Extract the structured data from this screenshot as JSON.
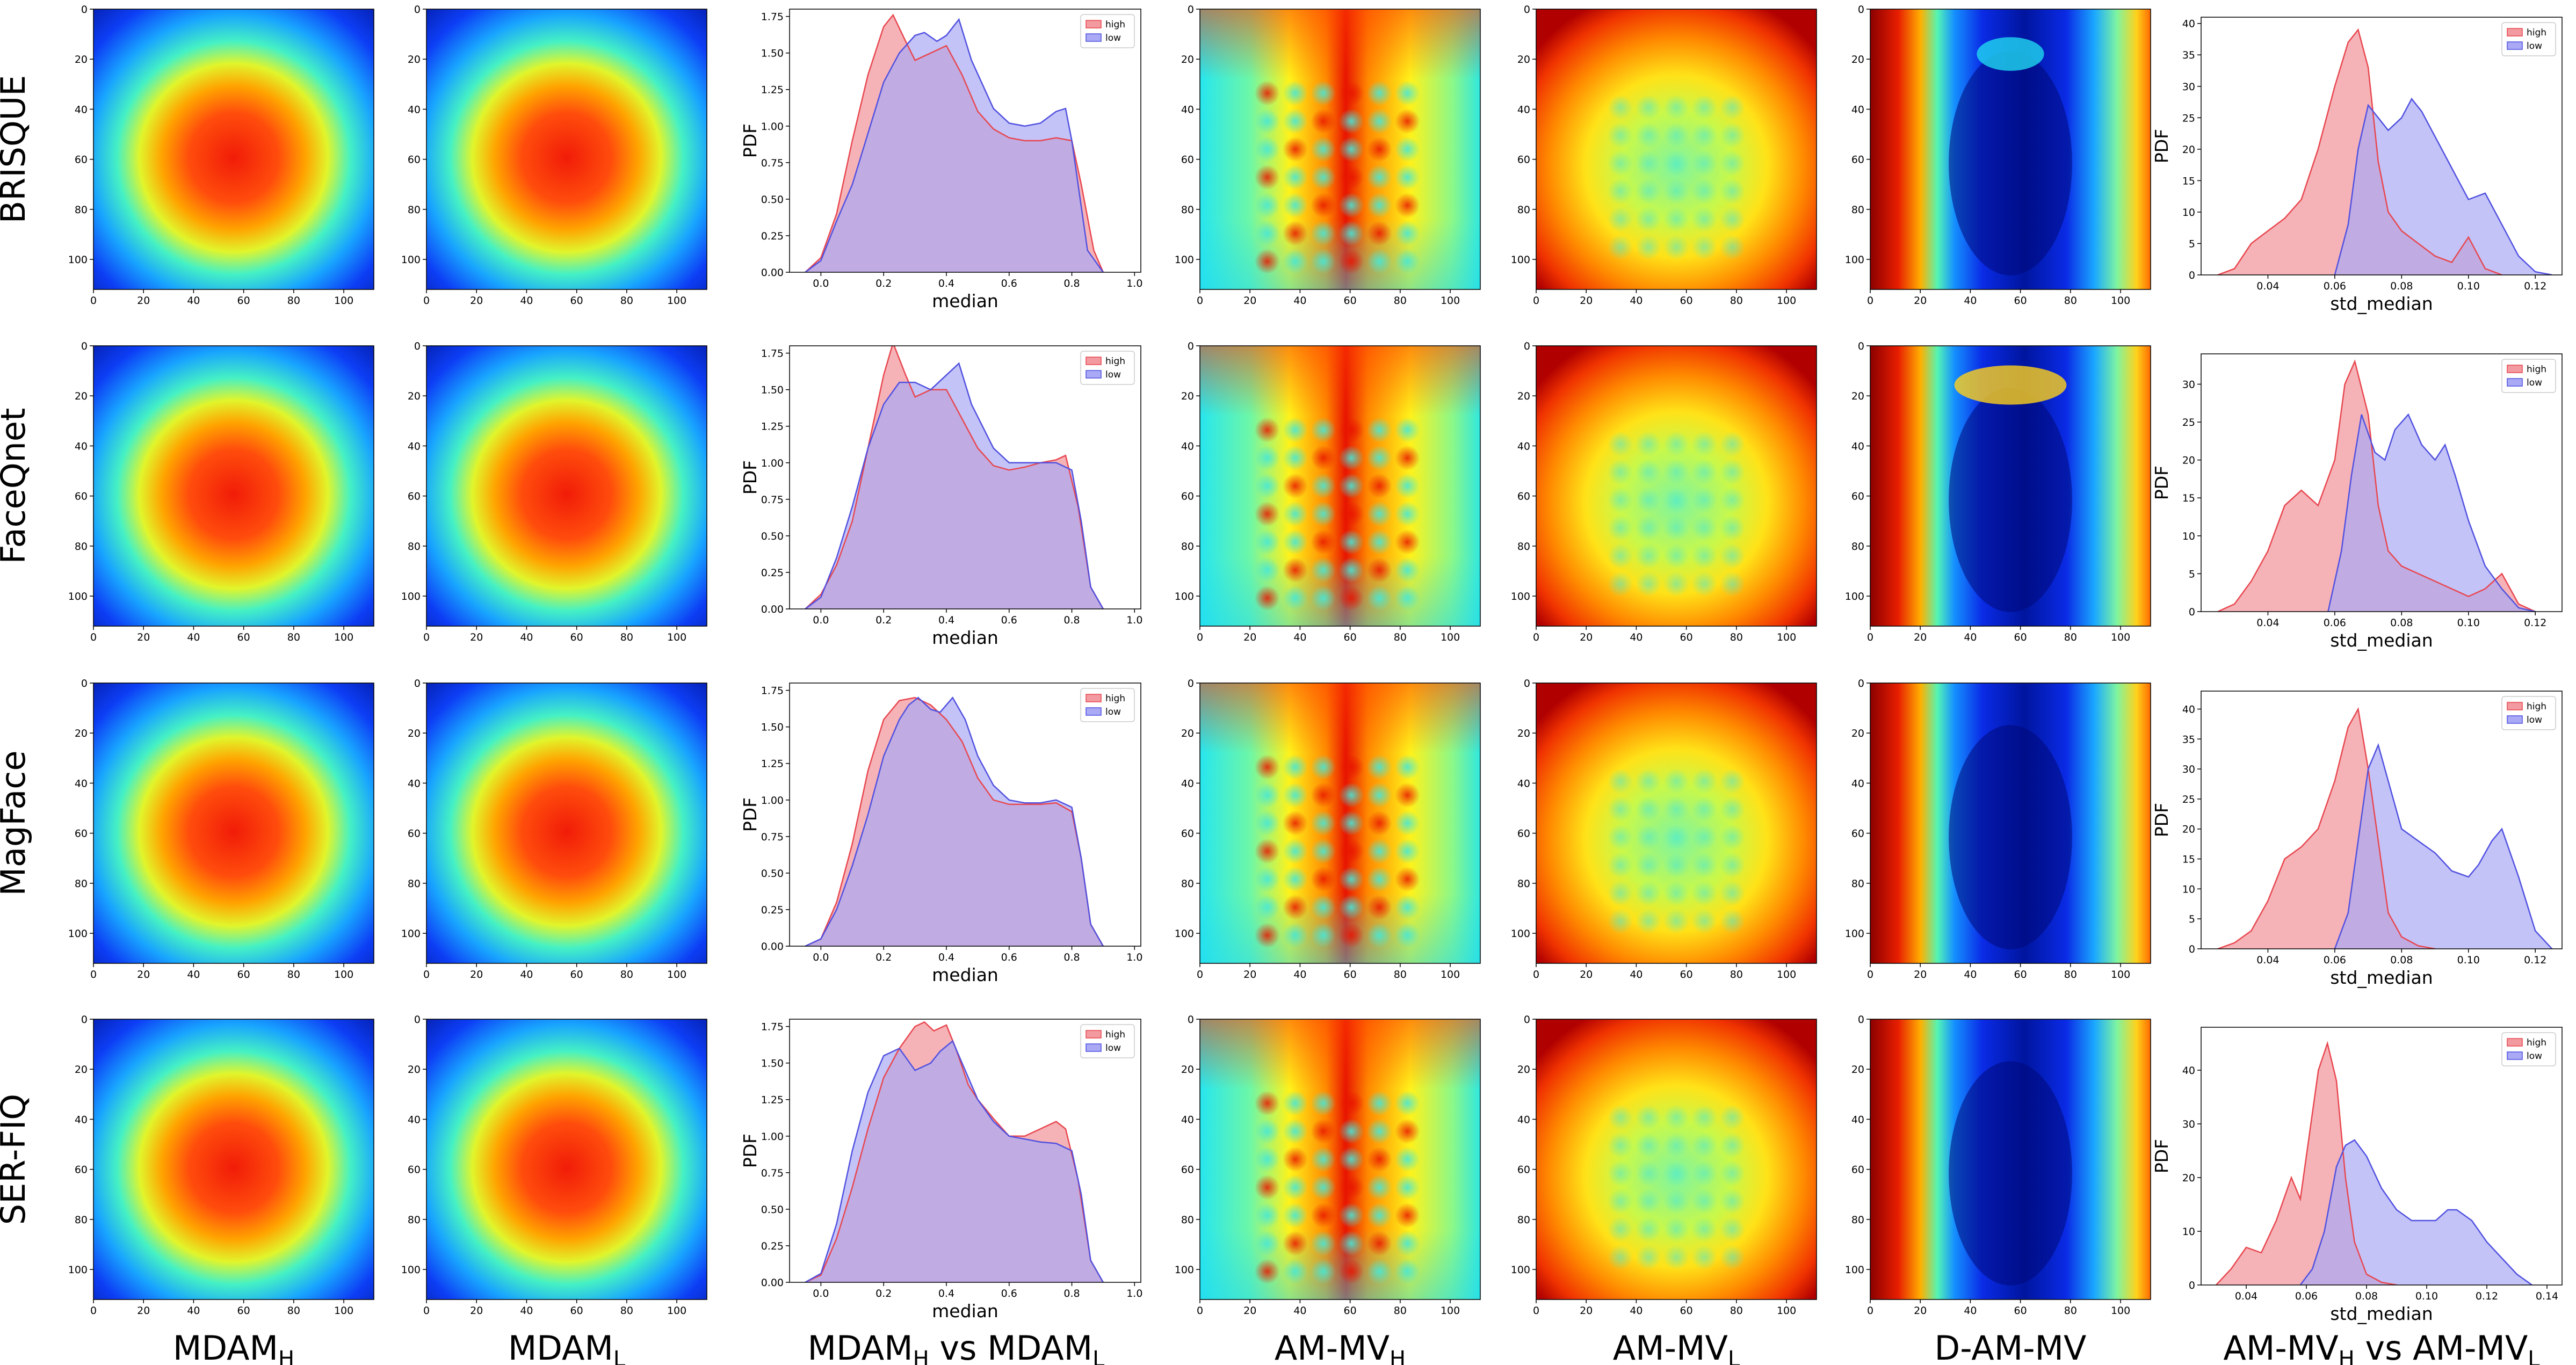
{
  "row_labels": [
    "BRISQUE",
    "FaceQnet",
    "MagFace",
    "SER-FIQ"
  ],
  "column_labels": [
    {
      "main": "MDAM",
      "sub": "H"
    },
    {
      "main": "MDAM",
      "sub": "L"
    },
    {
      "main": "MDAM",
      "sub": "H",
      "mid": " vs MDAM",
      "sub2": "L"
    },
    {
      "main": "AM-MV",
      "sub": "H"
    },
    {
      "main": "AM-MV",
      "sub": "L"
    },
    {
      "main": "D-AM-MV"
    },
    {
      "main": "AM-MV",
      "sub": "H",
      "mid": " vs AM-MV",
      "sub2": "L"
    }
  ],
  "colors": {
    "high": "#e8474f",
    "low": "#5151e0",
    "high_fill": "#f29aa0",
    "low_fill": "#a9a9f5",
    "overlap": "#b48ad2"
  },
  "chart_data": {
    "heatmap_axis": {
      "ticks": [
        0,
        20,
        40,
        60,
        80,
        100
      ],
      "range": [
        0,
        112
      ]
    },
    "heatmaps": [
      {
        "column": "MDAM_H",
        "type": "heatmap",
        "colormap": "jet",
        "pattern": "central blob (~60,65)"
      },
      {
        "column": "MDAM_L",
        "type": "heatmap",
        "colormap": "jet",
        "pattern": "central blob (~60,65)"
      },
      {
        "column": "AM-MV_H",
        "type": "heatmap",
        "colormap": "jet",
        "pattern": "grid of bright spots"
      },
      {
        "column": "AM-MV_L",
        "type": "heatmap",
        "colormap": "jet",
        "pattern": "hot border, cool center grid"
      },
      {
        "column": "D-AM-MV",
        "type": "heatmap",
        "colormap": "jet",
        "pattern": "cool central column, hot sides"
      }
    ],
    "median_kde": {
      "type": "area",
      "xlabel": "median",
      "ylabel": "PDF",
      "legend": [
        "high",
        "low"
      ],
      "legend_position": "top-right",
      "xlim": [
        -0.1,
        1.02
      ],
      "ylim": [
        0,
        1.8
      ],
      "xticks": [
        "0.0",
        "0.2",
        "0.4",
        "0.6",
        "0.8",
        "1.0"
      ],
      "yticks": [
        "0.00",
        "0.25",
        "0.50",
        "0.75",
        "1.00",
        "1.25",
        "1.50",
        "1.75"
      ],
      "rows": [
        {
          "method": "BRISQUE",
          "high": {
            "x": [
              -0.05,
              0.0,
              0.05,
              0.1,
              0.15,
              0.2,
              0.23,
              0.27,
              0.3,
              0.35,
              0.4,
              0.45,
              0.5,
              0.55,
              0.6,
              0.65,
              0.7,
              0.75,
              0.8,
              0.83,
              0.87,
              0.9
            ],
            "y": [
              0,
              0.1,
              0.4,
              0.9,
              1.35,
              1.68,
              1.76,
              1.58,
              1.45,
              1.5,
              1.55,
              1.35,
              1.1,
              0.98,
              0.92,
              0.9,
              0.9,
              0.92,
              0.9,
              0.6,
              0.15,
              0
            ]
          },
          "low": {
            "x": [
              -0.05,
              0.0,
              0.05,
              0.1,
              0.15,
              0.2,
              0.25,
              0.3,
              0.33,
              0.37,
              0.4,
              0.44,
              0.48,
              0.55,
              0.6,
              0.65,
              0.7,
              0.75,
              0.78,
              0.8,
              0.85,
              0.9
            ],
            "y": [
              0,
              0.08,
              0.35,
              0.6,
              0.95,
              1.3,
              1.5,
              1.62,
              1.64,
              1.58,
              1.62,
              1.73,
              1.45,
              1.12,
              1.02,
              1.0,
              1.02,
              1.1,
              1.12,
              0.9,
              0.15,
              0
            ]
          }
        },
        {
          "method": "FaceQnet",
          "high": {
            "x": [
              -0.05,
              0.0,
              0.05,
              0.1,
              0.15,
              0.2,
              0.23,
              0.27,
              0.3,
              0.35,
              0.4,
              0.45,
              0.5,
              0.55,
              0.6,
              0.65,
              0.7,
              0.75,
              0.78,
              0.82,
              0.86,
              0.9
            ],
            "y": [
              0,
              0.1,
              0.3,
              0.6,
              1.1,
              1.6,
              1.82,
              1.6,
              1.45,
              1.5,
              1.5,
              1.3,
              1.1,
              0.98,
              0.95,
              0.97,
              1.0,
              1.02,
              1.05,
              0.7,
              0.15,
              0
            ]
          },
          "low": {
            "x": [
              -0.05,
              0.0,
              0.05,
              0.1,
              0.15,
              0.2,
              0.25,
              0.3,
              0.35,
              0.4,
              0.44,
              0.48,
              0.55,
              0.6,
              0.65,
              0.7,
              0.75,
              0.8,
              0.83,
              0.86,
              0.9
            ],
            "y": [
              0,
              0.08,
              0.35,
              0.7,
              1.1,
              1.4,
              1.55,
              1.55,
              1.5,
              1.6,
              1.68,
              1.4,
              1.1,
              1.0,
              1.0,
              1.0,
              1.0,
              0.95,
              0.6,
              0.15,
              0
            ]
          }
        },
        {
          "method": "MagFace",
          "high": {
            "x": [
              -0.05,
              0.0,
              0.05,
              0.1,
              0.15,
              0.2,
              0.25,
              0.3,
              0.35,
              0.4,
              0.45,
              0.5,
              0.55,
              0.6,
              0.65,
              0.7,
              0.75,
              0.8,
              0.83,
              0.86,
              0.9
            ],
            "y": [
              0,
              0.05,
              0.3,
              0.7,
              1.2,
              1.55,
              1.68,
              1.7,
              1.65,
              1.55,
              1.4,
              1.15,
              1.0,
              0.97,
              0.97,
              0.97,
              0.98,
              0.92,
              0.6,
              0.15,
              0
            ]
          },
          "low": {
            "x": [
              -0.05,
              0.0,
              0.05,
              0.1,
              0.15,
              0.2,
              0.25,
              0.28,
              0.31,
              0.35,
              0.38,
              0.42,
              0.46,
              0.5,
              0.55,
              0.6,
              0.65,
              0.7,
              0.75,
              0.8,
              0.83,
              0.86,
              0.9
            ],
            "y": [
              0,
              0.05,
              0.25,
              0.55,
              0.9,
              1.3,
              1.55,
              1.65,
              1.7,
              1.62,
              1.6,
              1.7,
              1.55,
              1.3,
              1.1,
              1.0,
              0.98,
              0.98,
              1.0,
              0.95,
              0.6,
              0.15,
              0
            ]
          }
        },
        {
          "method": "SER-FIQ",
          "high": {
            "x": [
              -0.05,
              0.0,
              0.05,
              0.1,
              0.15,
              0.2,
              0.25,
              0.3,
              0.33,
              0.36,
              0.4,
              0.43,
              0.47,
              0.5,
              0.55,
              0.6,
              0.65,
              0.7,
              0.75,
              0.78,
              0.82,
              0.86,
              0.9
            ],
            "y": [
              0,
              0.05,
              0.3,
              0.65,
              1.05,
              1.4,
              1.6,
              1.75,
              1.78,
              1.72,
              1.76,
              1.6,
              1.35,
              1.25,
              1.12,
              1.0,
              1.0,
              1.05,
              1.1,
              1.05,
              0.7,
              0.15,
              0
            ]
          },
          "low": {
            "x": [
              -0.05,
              0.0,
              0.05,
              0.1,
              0.15,
              0.2,
              0.25,
              0.3,
              0.35,
              0.38,
              0.42,
              0.46,
              0.5,
              0.55,
              0.6,
              0.65,
              0.7,
              0.75,
              0.8,
              0.83,
              0.86,
              0.9
            ],
            "y": [
              0,
              0.06,
              0.4,
              0.9,
              1.3,
              1.55,
              1.6,
              1.45,
              1.5,
              1.58,
              1.65,
              1.45,
              1.25,
              1.1,
              1.0,
              0.98,
              0.96,
              0.95,
              0.9,
              0.6,
              0.15,
              0
            ]
          }
        }
      ]
    },
    "std_kde": {
      "type": "area",
      "xlabel": "std_median",
      "ylabel": "PDF",
      "legend": [
        "high",
        "low"
      ],
      "legend_position": "top-right",
      "rows": [
        {
          "method": "BRISQUE",
          "xlim": [
            0.02,
            0.128
          ],
          "ylim": [
            0,
            41
          ],
          "xticks": [
            "0.04",
            "0.06",
            "0.08",
            "0.10",
            "0.12"
          ],
          "yticks": [
            "0",
            "5",
            "10",
            "15",
            "20",
            "25",
            "30",
            "35",
            "40"
          ],
          "high": {
            "x": [
              0.025,
              0.03,
              0.035,
              0.04,
              0.045,
              0.05,
              0.055,
              0.06,
              0.064,
              0.067,
              0.07,
              0.073,
              0.076,
              0.08,
              0.085,
              0.09,
              0.095,
              0.1,
              0.105,
              0.11
            ],
            "y": [
              0,
              1,
              5,
              7,
              9,
              12,
              20,
              30,
              37,
              39,
              33,
              18,
              10,
              7,
              5,
              3,
              2,
              6,
              1,
              0
            ]
          },
          "low": {
            "x": [
              0.06,
              0.064,
              0.067,
              0.07,
              0.073,
              0.076,
              0.08,
              0.083,
              0.086,
              0.09,
              0.095,
              0.1,
              0.105,
              0.11,
              0.115,
              0.12,
              0.125
            ],
            "y": [
              0,
              8,
              20,
              27,
              25,
              23,
              25,
              28,
              26,
              22,
              17,
              12,
              13,
              8,
              3,
              0.5,
              0
            ]
          }
        },
        {
          "method": "FaceQnet",
          "xlim": [
            0.02,
            0.128
          ],
          "ylim": [
            0,
            34
          ],
          "xticks": [
            "0.04",
            "0.06",
            "0.08",
            "0.10",
            "0.12"
          ],
          "yticks": [
            "0",
            "5",
            "10",
            "15",
            "20",
            "25",
            "30"
          ],
          "high": {
            "x": [
              0.025,
              0.03,
              0.035,
              0.04,
              0.045,
              0.05,
              0.055,
              0.06,
              0.063,
              0.066,
              0.07,
              0.073,
              0.076,
              0.08,
              0.085,
              0.09,
              0.095,
              0.1,
              0.105,
              0.11,
              0.115,
              0.12
            ],
            "y": [
              0,
              1,
              4,
              8,
              14,
              16,
              14,
              20,
              30,
              33,
              26,
              14,
              8,
              6,
              5,
              4,
              3,
              2,
              3,
              5,
              1,
              0
            ]
          },
          "low": {
            "x": [
              0.058,
              0.062,
              0.065,
              0.068,
              0.072,
              0.075,
              0.078,
              0.082,
              0.086,
              0.09,
              0.093,
              0.096,
              0.1,
              0.105,
              0.11,
              0.115,
              0.12
            ],
            "y": [
              0,
              8,
              18,
              26,
              21,
              20,
              24,
              26,
              22,
              20,
              22,
              18,
              12,
              6,
              3,
              0.5,
              0
            ]
          }
        },
        {
          "method": "MagFace",
          "xlim": [
            0.02,
            0.128
          ],
          "ylim": [
            0,
            43
          ],
          "xticks": [
            "0.04",
            "0.06",
            "0.08",
            "0.10",
            "0.12"
          ],
          "yticks": [
            "0",
            "5",
            "10",
            "15",
            "20",
            "25",
            "30",
            "35",
            "40"
          ],
          "high": {
            "x": [
              0.025,
              0.03,
              0.035,
              0.04,
              0.045,
              0.05,
              0.055,
              0.06,
              0.064,
              0.067,
              0.07,
              0.073,
              0.076,
              0.08,
              0.085,
              0.09
            ],
            "y": [
              0,
              1,
              3,
              8,
              15,
              17,
              20,
              28,
              37,
              40,
              30,
              18,
              6,
              2,
              0.5,
              0
            ]
          },
          "low": {
            "x": [
              0.06,
              0.064,
              0.067,
              0.07,
              0.073,
              0.076,
              0.08,
              0.085,
              0.09,
              0.095,
              0.1,
              0.103,
              0.107,
              0.11,
              0.115,
              0.12,
              0.125
            ],
            "y": [
              0,
              6,
              18,
              30,
              34,
              28,
              20,
              18,
              16,
              13,
              12,
              14,
              18,
              20,
              12,
              3,
              0
            ]
          }
        },
        {
          "method": "SER-FIQ",
          "xlim": [
            0.025,
            0.145
          ],
          "ylim": [
            0,
            48
          ],
          "xticks": [
            "0.04",
            "0.06",
            "0.08",
            "0.10",
            "0.12",
            "0.14"
          ],
          "yticks": [
            "0",
            "10",
            "20",
            "30",
            "40"
          ],
          "high": {
            "x": [
              0.03,
              0.035,
              0.04,
              0.045,
              0.05,
              0.055,
              0.058,
              0.061,
              0.064,
              0.067,
              0.07,
              0.073,
              0.076,
              0.08,
              0.085,
              0.09
            ],
            "y": [
              0,
              3,
              7,
              6,
              12,
              20,
              16,
              28,
              40,
              45,
              38,
              20,
              8,
              2,
              0.5,
              0
            ]
          },
          "low": {
            "x": [
              0.058,
              0.062,
              0.066,
              0.07,
              0.073,
              0.076,
              0.08,
              0.085,
              0.09,
              0.095,
              0.1,
              0.103,
              0.107,
              0.11,
              0.115,
              0.12,
              0.125,
              0.13,
              0.135
            ],
            "y": [
              0,
              3,
              10,
              22,
              26,
              27,
              24,
              18,
              14,
              12,
              12,
              12,
              14,
              14,
              12,
              8,
              5,
              2,
              0
            ]
          }
        }
      ]
    }
  }
}
